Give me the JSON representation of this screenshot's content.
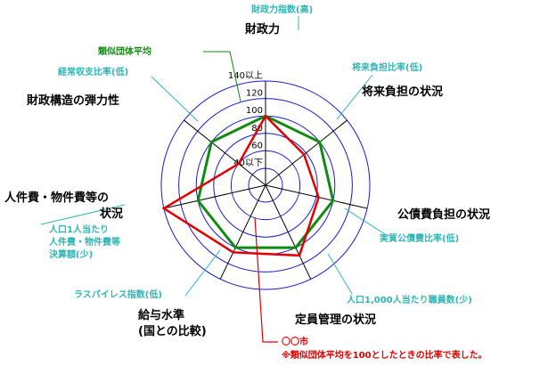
{
  "chart_data": {
    "type": "radar",
    "axes": [
      {
        "label": "財政力",
        "indicator": "財政力指数(高)"
      },
      {
        "label": "将来負担の状況",
        "indicator": "将来負担比率(低)"
      },
      {
        "label": "公債費負担の状況",
        "indicator": "実質公債費比率(低)"
      },
      {
        "label": "定員管理の状況",
        "indicator": "人口1,000人当たり職員数(少)"
      },
      {
        "label": "給与水準\n(国との比較)",
        "indicator": "ラスパイレス指数(低)"
      },
      {
        "label": "人件費・物件費等の\n状況",
        "indicator": "人口1人当たり\n人件費・物件費等\n決算額(少)"
      },
      {
        "label": "財政構造の弾力性",
        "indicator": "経常収支比率(低)"
      }
    ],
    "rings": [
      40,
      60,
      80,
      100,
      120,
      140
    ],
    "tick_labels": [
      "40以下",
      "60",
      "80",
      "100",
      "120",
      "140以上"
    ],
    "series": [
      {
        "name": "類似団体平均",
        "color": "#108a10",
        "values": [
          100,
          100,
          100,
          100,
          100,
          100,
          100
        ]
      },
      {
        "name": "〇〇市",
        "color": "#e00000",
        "values": [
          100,
          77,
          83,
          110,
          106,
          140,
          60
        ]
      }
    ],
    "footnote": "※類似団体平均を100としたときの比率で表した。"
  }
}
